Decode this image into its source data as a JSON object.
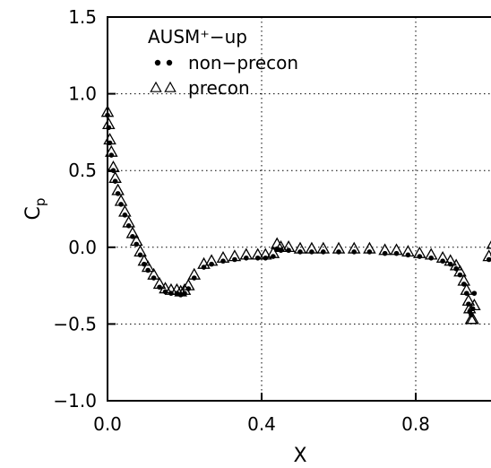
{
  "chart_data": {
    "type": "scatter",
    "xlabel": "X",
    "ylabel_main": "C",
    "ylabel_sub": "p",
    "xlim": [
      0.0,
      1.0
    ],
    "ylim": [
      -1.0,
      1.5
    ],
    "xticks": [
      0.0,
      0.4,
      0.8
    ],
    "xtick_labels": [
      "0.0",
      "0.4",
      "0.8"
    ],
    "yticks": [
      -1.0,
      -0.5,
      0.0,
      0.5,
      1.0,
      1.5
    ],
    "ytick_labels": [
      "−1.0",
      "−0.5",
      "0.0",
      "0.5",
      "1.0",
      "1.5"
    ],
    "grid": true,
    "legend_placement": "top-left",
    "legend_title": "AUSM⁺−up",
    "series": [
      {
        "name": "non-precon",
        "legend_label": "non−precon",
        "marker": "filled-circle",
        "color": "#000000",
        "x": [
          0.0,
          0.003,
          0.006,
          0.01,
          0.015,
          0.02,
          0.027,
          0.035,
          0.045,
          0.055,
          0.065,
          0.075,
          0.085,
          0.095,
          0.105,
          0.12,
          0.135,
          0.15,
          0.165,
          0.18,
          0.19,
          0.2,
          0.21,
          0.225,
          0.25,
          0.27,
          0.3,
          0.33,
          0.36,
          0.39,
          0.41,
          0.43,
          0.44,
          0.45,
          0.47,
          0.5,
          0.53,
          0.56,
          0.6,
          0.64,
          0.68,
          0.72,
          0.75,
          0.78,
          0.81,
          0.84,
          0.87,
          0.89,
          0.905,
          0.915,
          0.925,
          0.932,
          0.937,
          0.94,
          0.944,
          0.948,
          0.952,
          0.99,
          1.0
        ],
        "y": [
          0.86,
          0.78,
          0.68,
          0.6,
          0.5,
          0.43,
          0.35,
          0.28,
          0.21,
          0.14,
          0.07,
          0.02,
          -0.05,
          -0.11,
          -0.15,
          -0.2,
          -0.26,
          -0.29,
          -0.3,
          -0.3,
          -0.31,
          -0.3,
          -0.27,
          -0.2,
          -0.13,
          -0.11,
          -0.09,
          -0.08,
          -0.07,
          -0.07,
          -0.07,
          -0.06,
          -0.01,
          -0.02,
          -0.02,
          -0.03,
          -0.03,
          -0.03,
          -0.03,
          -0.03,
          -0.03,
          -0.04,
          -0.04,
          -0.05,
          -0.06,
          -0.07,
          -0.09,
          -0.11,
          -0.14,
          -0.18,
          -0.24,
          -0.3,
          -0.37,
          -0.42,
          -0.44,
          -0.4,
          -0.3,
          -0.08,
          -0.05
        ]
      },
      {
        "name": "precon",
        "legend_label": "precon",
        "marker": "open-triangle",
        "color": "#000000",
        "x": [
          0.0,
          0.003,
          0.006,
          0.01,
          0.015,
          0.02,
          0.027,
          0.035,
          0.045,
          0.055,
          0.065,
          0.075,
          0.085,
          0.095,
          0.105,
          0.12,
          0.135,
          0.15,
          0.165,
          0.18,
          0.19,
          0.2,
          0.21,
          0.225,
          0.25,
          0.27,
          0.3,
          0.33,
          0.36,
          0.39,
          0.41,
          0.43,
          0.44,
          0.45,
          0.47,
          0.5,
          0.53,
          0.56,
          0.6,
          0.64,
          0.68,
          0.72,
          0.75,
          0.78,
          0.81,
          0.84,
          0.87,
          0.89,
          0.905,
          0.915,
          0.925,
          0.932,
          0.937,
          0.94,
          0.944,
          0.948,
          0.952,
          0.99,
          1.0
        ],
        "y": [
          0.88,
          0.8,
          0.7,
          0.62,
          0.52,
          0.45,
          0.37,
          0.3,
          0.23,
          0.16,
          0.09,
          0.04,
          -0.03,
          -0.09,
          -0.13,
          -0.18,
          -0.24,
          -0.27,
          -0.28,
          -0.28,
          -0.29,
          -0.28,
          -0.25,
          -0.18,
          -0.11,
          -0.09,
          -0.07,
          -0.06,
          -0.05,
          -0.05,
          -0.05,
          -0.04,
          0.02,
          0.0,
          0.0,
          -0.01,
          -0.01,
          -0.01,
          -0.01,
          -0.01,
          -0.01,
          -0.02,
          -0.02,
          -0.03,
          -0.04,
          -0.05,
          -0.07,
          -0.09,
          -0.12,
          -0.16,
          -0.22,
          -0.28,
          -0.35,
          -0.4,
          -0.47,
          -0.47,
          -0.38,
          -0.06,
          0.02
        ]
      }
    ]
  }
}
